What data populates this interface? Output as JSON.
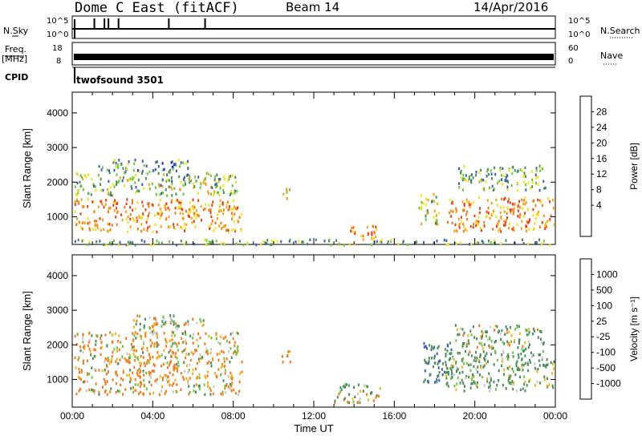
{
  "header": {
    "title": "Dome C East (fitACF)",
    "beam": "Beam 14",
    "date": "14/Apr/2016"
  },
  "top_panels": {
    "nsky_label": "N.Sky",
    "nsky_ticks": [
      "10^5",
      "10^0"
    ],
    "nsearch_label": "N.Search",
    "nsearch_ticks": [
      "10^5",
      "10^0"
    ],
    "freq_label": "Freq.",
    "freq_unit": "[MHz]",
    "freq_ticks": [
      "18",
      "8"
    ],
    "nave_label": "Nave",
    "nave_ticks": [
      "60",
      "0"
    ],
    "cpid_label": "CPID",
    "cpid_value": "twofsound 3501"
  },
  "colors": {
    "power": [
      "#1a1aff",
      "#3b5fb0",
      "#4a8e5a",
      "#6bc83c",
      "#f2e21d",
      "#f5a21a",
      "#f47a1b",
      "#ec3d16",
      "#e81111"
    ],
    "velocity": [
      "#e81111",
      "#ec3d16",
      "#f47a1b",
      "#f5b21a",
      "#c8c8c8",
      "#6bc83c",
      "#4a8e5a",
      "#3b5fb0",
      "#2a40b8"
    ]
  },
  "chart_data": [
    {
      "type": "heatmap",
      "panel": "power",
      "xlabel": "",
      "ylabel": "Slant Range [km]",
      "ylim": [
        200,
        4600
      ],
      "yticks": [
        "4000",
        "3000",
        "2000",
        "1000"
      ],
      "colorbar_label": "Power [dB]",
      "colorbar_ticks": [
        "28",
        "24",
        "20",
        "16",
        "12",
        "8",
        "4"
      ],
      "x_range_hours": [
        0,
        24
      ],
      "blobs": [
        {
          "t": [
            0.1,
            8.4
          ],
          "r": [
            600,
            1550
          ],
          "v": 24
        },
        {
          "t": [
            0.1,
            8.2
          ],
          "r": [
            1650,
            2300
          ],
          "v": 14
        },
        {
          "t": [
            1.3,
            5.8
          ],
          "r": [
            2300,
            2700
          ],
          "v": 10
        },
        {
          "t": [
            10.3,
            10.8
          ],
          "r": [
            1500,
            1900
          ],
          "v": 18
        },
        {
          "t": [
            13.7,
            15.1
          ],
          "r": [
            350,
            800
          ],
          "v": 24
        },
        {
          "t": [
            17.2,
            18.2
          ],
          "r": [
            800,
            1700
          ],
          "v": 16
        },
        {
          "t": [
            18.6,
            23.9
          ],
          "r": [
            600,
            1600
          ],
          "v": 24
        },
        {
          "t": [
            19.0,
            23.5
          ],
          "r": [
            1800,
            2500
          ],
          "v": 12
        },
        {
          "t": [
            0.1,
            23.9
          ],
          "r": [
            220,
            380
          ],
          "v": 12
        }
      ]
    },
    {
      "type": "heatmap",
      "panel": "velocity",
      "xlabel": "Time UT",
      "ylabel": "Slant Range [km]",
      "ylim": [
        200,
        4600
      ],
      "yticks": [
        "4000",
        "3000",
        "2000",
        "1000"
      ],
      "xticks": [
        "00:00",
        "04:00",
        "08:00",
        "12:00",
        "16:00",
        "20:00",
        "00:00"
      ],
      "colorbar_label": "Velocity [m s⁻¹]",
      "colorbar_ticks": [
        "1000",
        "500",
        "100",
        "25",
        "-25",
        "-100",
        "-500",
        "-1000"
      ],
      "x_range_hours": [
        0,
        24
      ],
      "blobs": [
        {
          "t": [
            0.1,
            8.4
          ],
          "r": [
            600,
            1650
          ],
          "v": -150
        },
        {
          "t": [
            0.1,
            8.2
          ],
          "r": [
            1650,
            2400
          ],
          "v": -120
        },
        {
          "t": [
            3.0,
            6.5
          ],
          "r": [
            2300,
            2900
          ],
          "v": 0
        },
        {
          "t": [
            10.3,
            10.8
          ],
          "r": [
            1500,
            1900
          ],
          "v": -200
        },
        {
          "t": [
            13.0,
            15.3
          ],
          "r": [
            350,
            900
          ],
          "v": 80
        },
        {
          "t": [
            17.4,
            18.9
          ],
          "r": [
            800,
            2100
          ],
          "v": 400
        },
        {
          "t": [
            18.5,
            23.9
          ],
          "r": [
            700,
            1800
          ],
          "v": 200
        },
        {
          "t": [
            19.0,
            23.5
          ],
          "r": [
            1800,
            2600
          ],
          "v": 150
        }
      ]
    }
  ]
}
